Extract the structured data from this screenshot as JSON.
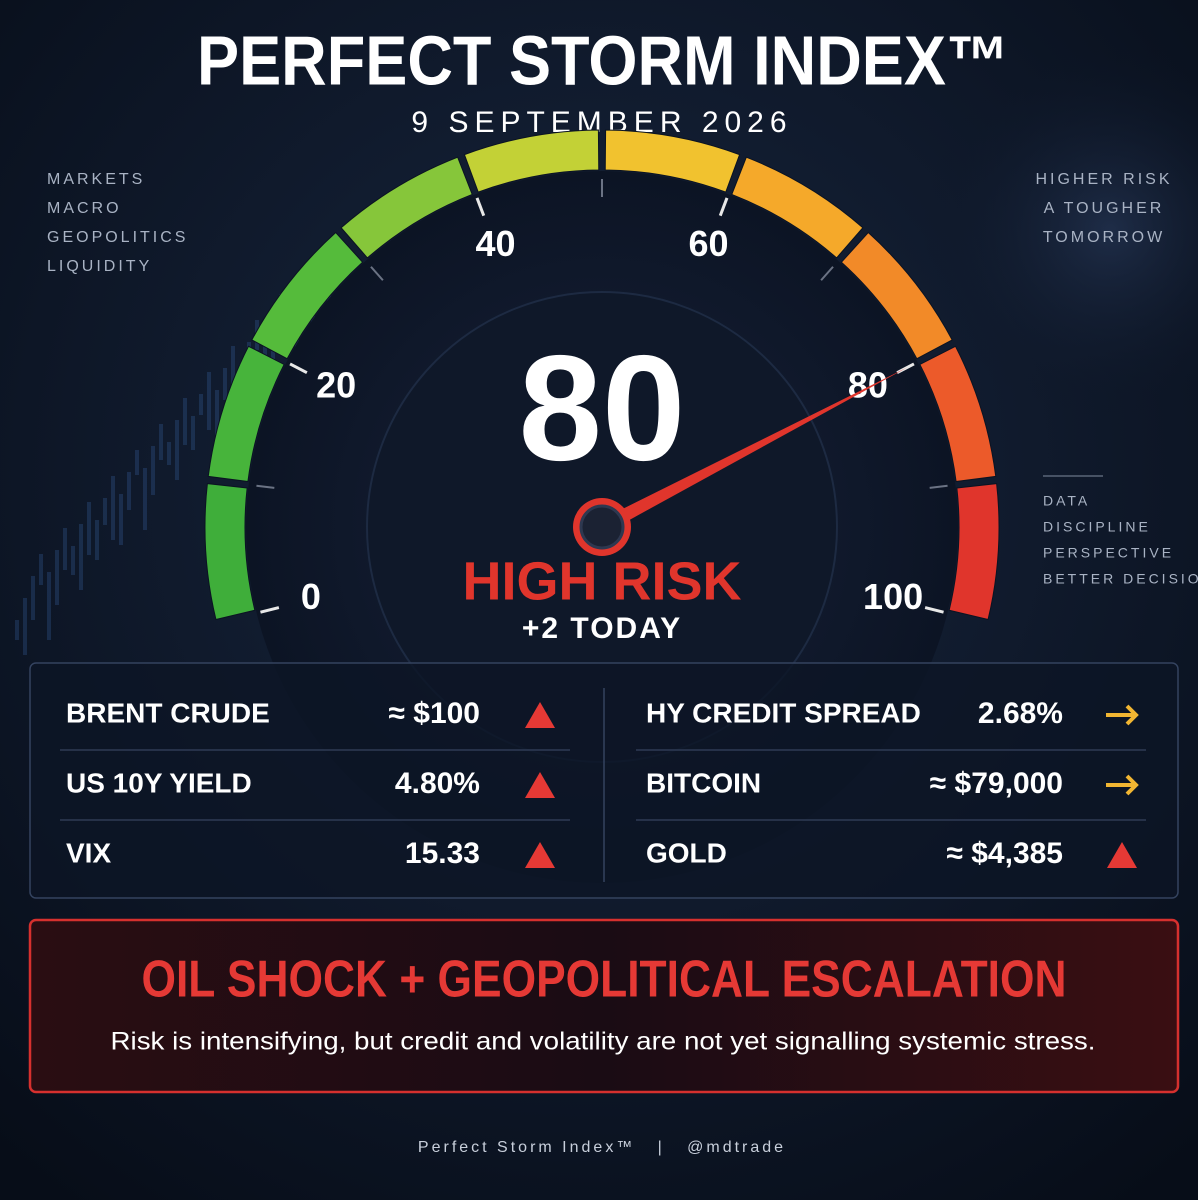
{
  "header": {
    "title": "PERFECT STORM INDEX™",
    "date": "9 SEPTEMBER 2026"
  },
  "left_notes": [
    "MARKETS",
    "MACRO",
    "GEOPOLITICS",
    "LIQUIDITY"
  ],
  "right_notes": [
    "HIGHER RISK",
    "A TOUGHER",
    "TOMORROW"
  ],
  "right_notes_2": [
    "DATA",
    "DISCIPLINE",
    "PERSPECTIVE",
    "BETTER DECISIONS"
  ],
  "chart_data": {
    "type": "gauge",
    "value": 80,
    "status": "HIGH RISK",
    "change": "+2 TODAY",
    "ylim": [
      0,
      100
    ],
    "yticks": [
      0,
      20,
      40,
      60,
      80,
      100
    ],
    "needle_color": "#e0352c",
    "segment_colors": [
      "#3fae3a",
      "#47b43b",
      "#55bb3b",
      "#86c63a",
      "#c3d136",
      "#f1c22f",
      "#f5a92a",
      "#f28a28",
      "#ec5a2a",
      "#e0352c"
    ]
  },
  "indicators": [
    {
      "name": "BRENT CRUDE",
      "value": "≈ $100",
      "trend": "up",
      "color": "#e53935"
    },
    {
      "name": "US 10Y YIELD",
      "value": "4.80%",
      "trend": "up",
      "color": "#e53935"
    },
    {
      "name": "VIX",
      "value": "15.33",
      "trend": "up",
      "color": "#e53935"
    },
    {
      "name": "HY CREDIT SPREAD",
      "value": "2.68%",
      "trend": "right",
      "color": "#f2b632"
    },
    {
      "name": "BITCOIN",
      "value": "≈ $79,000",
      "trend": "right",
      "color": "#f2b632"
    },
    {
      "name": "GOLD",
      "value": "≈ $4,385",
      "trend": "up",
      "color": "#e53935"
    }
  ],
  "banner": {
    "headline": "OIL SHOCK + GEOPOLITICAL ESCALATION",
    "text": "Risk is intensifying, but credit and volatility are not yet signalling systemic stress."
  },
  "footer": "Perfect Storm Index™   |   @mdtrade"
}
